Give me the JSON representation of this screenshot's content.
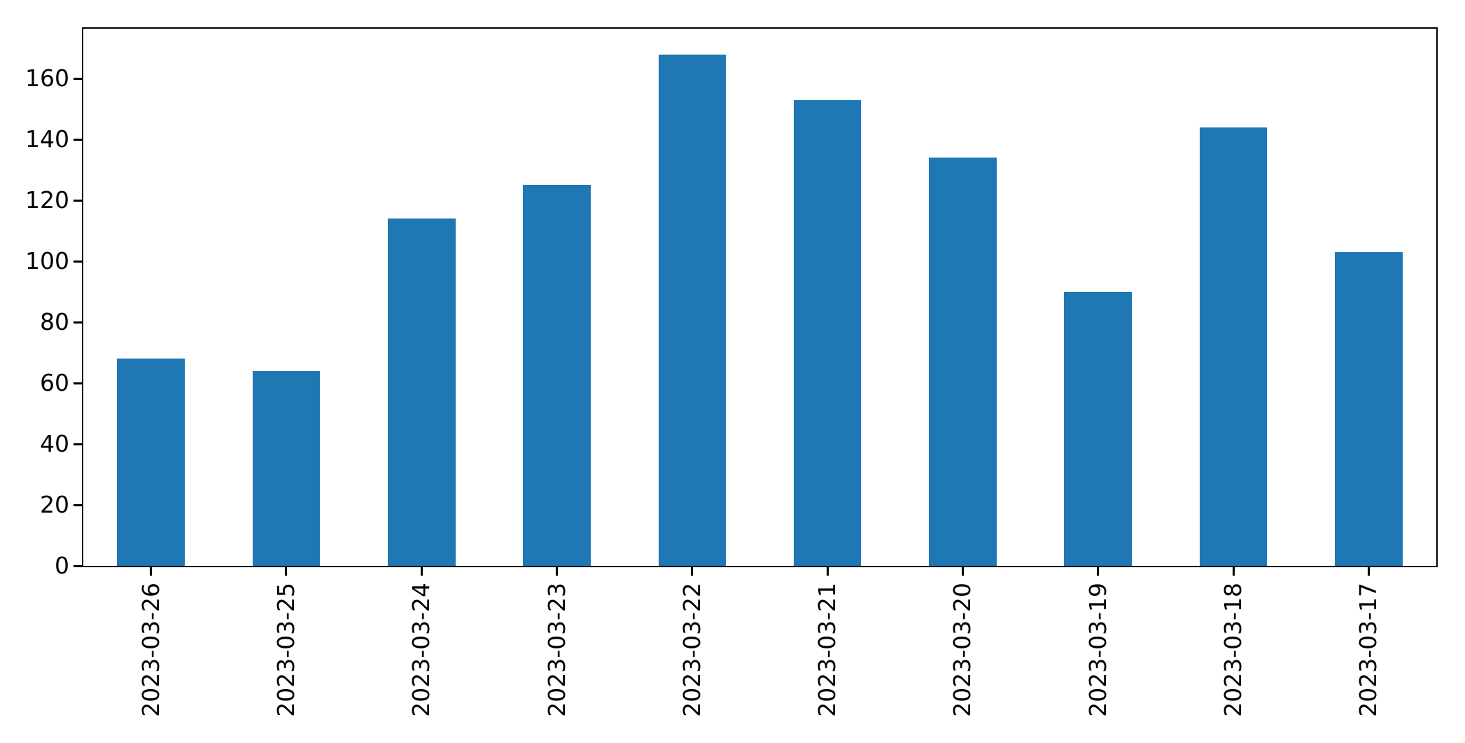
{
  "chart_data": {
    "type": "bar",
    "categories": [
      "2023-03-26",
      "2023-03-25",
      "2023-03-24",
      "2023-03-23",
      "2023-03-22",
      "2023-03-21",
      "2023-03-20",
      "2023-03-19",
      "2023-03-18",
      "2023-03-17"
    ],
    "values": [
      68,
      64,
      114,
      125,
      168,
      153,
      134,
      90,
      144,
      103
    ],
    "title": "",
    "xlabel": "",
    "ylabel": "",
    "ylim": [
      0,
      176.4
    ],
    "yticks": [
      0,
      20,
      40,
      60,
      80,
      100,
      120,
      140,
      160
    ],
    "bar_color": "#1f77b4",
    "axis_color": "#000000",
    "background_color": "#ffffff",
    "grid": false,
    "legend": null,
    "x_tick_rotation": 90,
    "bar_width_fraction": 0.5
  }
}
